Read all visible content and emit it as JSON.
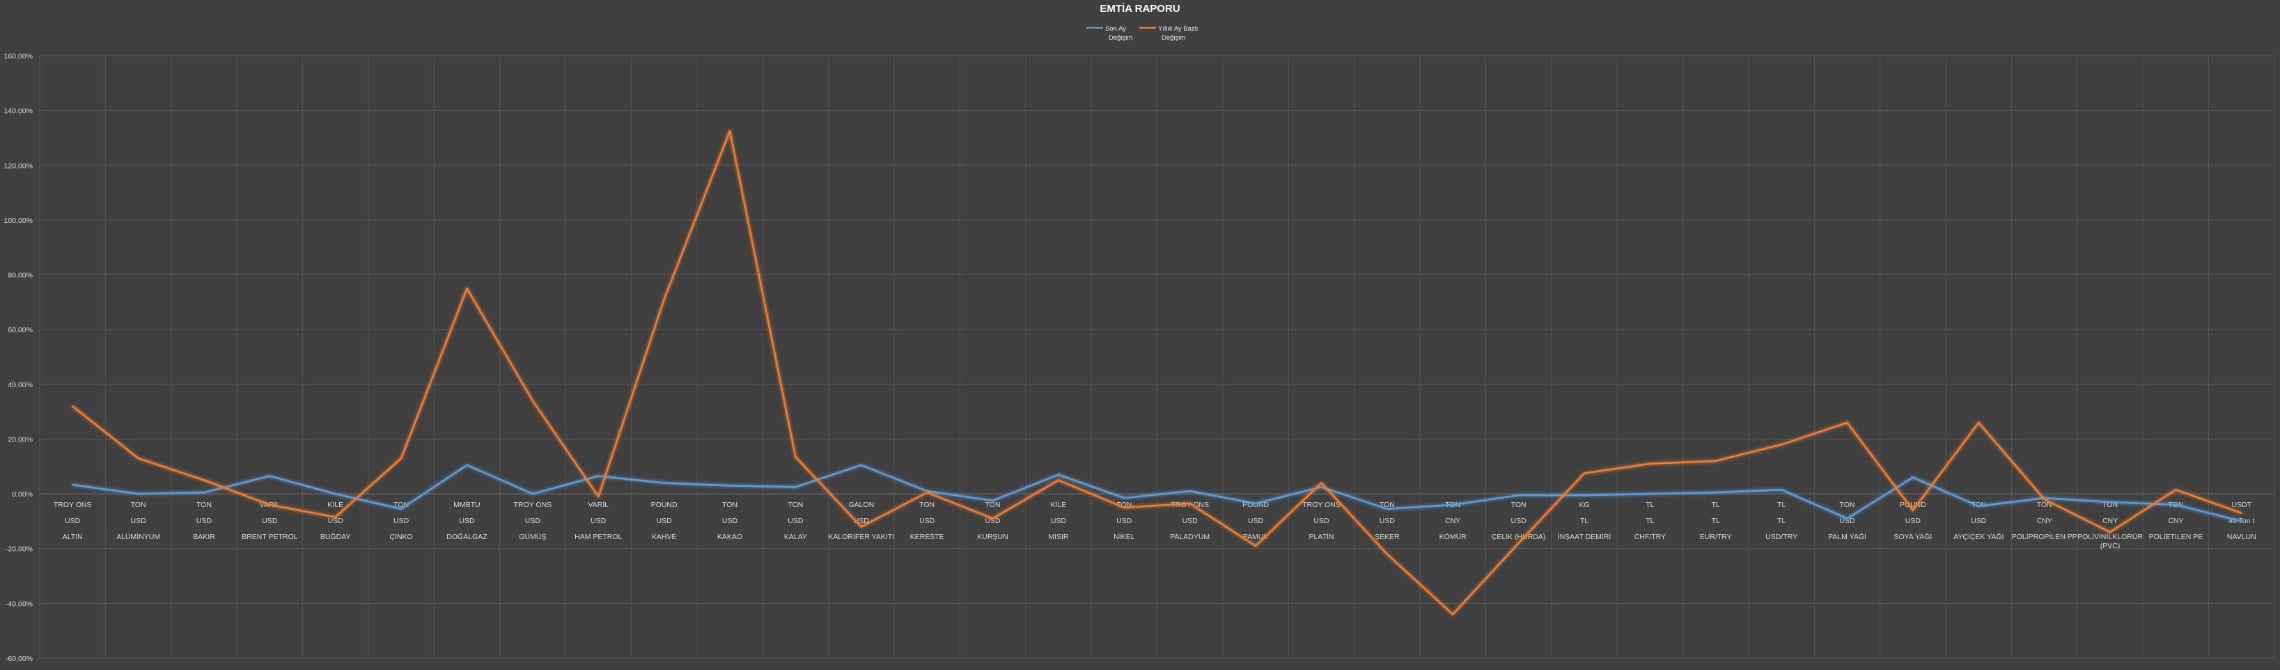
{
  "chart_data": {
    "type": "line",
    "title": "EMTİA RAPORU",
    "ylim": [
      -60,
      160
    ],
    "yticks": [
      "160,00%",
      "140,00%",
      "120,00%",
      "100,00%",
      "80,00%",
      "60,00%",
      "40,00%",
      "20,00%",
      "0,00%",
      "-20,00%",
      "-40,00%",
      "-60,00%"
    ],
    "grid": true,
    "legend_position": "top",
    "categories": [
      {
        "unit": "TROY ONS",
        "currency": "USD",
        "name": "ALTIN"
      },
      {
        "unit": "TON",
        "currency": "USD",
        "name": "ALÜMİNYUM"
      },
      {
        "unit": "TON",
        "currency": "USD",
        "name": "BAKIR"
      },
      {
        "unit": "VARİL",
        "currency": "USD",
        "name": "BRENT PETROL"
      },
      {
        "unit": "KİLE",
        "currency": "USD",
        "name": "BUĞDAY"
      },
      {
        "unit": "TON",
        "currency": "USD",
        "name": "ÇİNKO"
      },
      {
        "unit": "MMBTU",
        "currency": "USD",
        "name": "DOĞALGAZ"
      },
      {
        "unit": "TROY ONS",
        "currency": "USD",
        "name": "GÜMÜŞ"
      },
      {
        "unit": "VARİL",
        "currency": "USD",
        "name": "HAM PETROL"
      },
      {
        "unit": "POUND",
        "currency": "USD",
        "name": "KAHVE"
      },
      {
        "unit": "TON",
        "currency": "USD",
        "name": "KAKAO"
      },
      {
        "unit": "TON",
        "currency": "USD",
        "name": "KALAY"
      },
      {
        "unit": "GALON",
        "currency": "USD",
        "name": "KALORİFER YAKITI"
      },
      {
        "unit": "TON",
        "currency": "USD",
        "name": "KERESTE"
      },
      {
        "unit": "TON",
        "currency": "USD",
        "name": "KURŞUN"
      },
      {
        "unit": "KİLE",
        "currency": "USD",
        "name": "MISIR"
      },
      {
        "unit": "TON",
        "currency": "USD",
        "name": "NİKEL"
      },
      {
        "unit": "TROY ONS",
        "currency": "USD",
        "name": "PALADYUM"
      },
      {
        "unit": "POUND",
        "currency": "USD",
        "name": "PAMUK"
      },
      {
        "unit": "TROY ONS",
        "currency": "USD",
        "name": "PLATİN"
      },
      {
        "unit": "TON",
        "currency": "USD",
        "name": "ŞEKER"
      },
      {
        "unit": "TON",
        "currency": "CNY",
        "name": "KÖMÜR"
      },
      {
        "unit": "TON",
        "currency": "USD",
        "name": "ÇELİK (HURDA)"
      },
      {
        "unit": "KG",
        "currency": "TL",
        "name": "İNŞAAT DEMİRİ"
      },
      {
        "unit": "TL",
        "currency": "TL",
        "name": "CHF/TRY"
      },
      {
        "unit": "TL",
        "currency": "TL",
        "name": "EUR/TRY"
      },
      {
        "unit": "TL",
        "currency": "TL",
        "name": "USD/TRY"
      },
      {
        "unit": "TON",
        "currency": "USD",
        "name": "PALM YAĞI"
      },
      {
        "unit": "POUND",
        "currency": "USD",
        "name": "SOYA YAĞI"
      },
      {
        "unit": "TON",
        "currency": "USD",
        "name": "AYÇİÇEK YAĞI"
      },
      {
        "unit": "TON",
        "currency": "CNY",
        "name": "POLİPROPİLEN PP"
      },
      {
        "unit": "TON",
        "currency": "CNY",
        "name": "POLİVİNİLKLORÜR (PVC)"
      },
      {
        "unit": "TON",
        "currency": "CNY",
        "name": "POLİETİLEN PE"
      },
      {
        "unit": "USDT",
        "currency": "40 Ton t",
        "name": "NAVLUN"
      }
    ],
    "series": [
      {
        "name": "Son Ay Değişim",
        "color": "#5b9bd5",
        "values": [
          3.3,
          0.0,
          0.5,
          6.5,
          0.0,
          -5.5,
          10.5,
          0.0,
          6.5,
          4.0,
          3.0,
          2.5,
          10.5,
          1.0,
          -2.5,
          7.0,
          -1.5,
          1.0,
          -3.5,
          2.5,
          -5.5,
          -4.0,
          -0.5,
          -0.5,
          0.0,
          0.5,
          1.5,
          -9.0,
          6.0,
          -4.5,
          -1.5,
          -3.0,
          -4.0,
          -10.0
        ]
      },
      {
        "name": "Yıllık Ay Bazlı Değişim",
        "color": "#ed7d31",
        "values": [
          32.0,
          13.0,
          5.0,
          -4.0,
          -8.5,
          13.0,
          75.0,
          34.0,
          -1.0,
          71.0,
          132.5,
          13.5,
          -12.0,
          0.5,
          -9.0,
          5.0,
          -5.0,
          -3.5,
          -19.0,
          4.0,
          -22.0,
          -44.0,
          -18.0,
          7.5,
          11.0,
          12.0,
          18.0,
          26.0,
          -6.0,
          26.0,
          -2.0,
          -14.0,
          1.5,
          -7.0
        ]
      }
    ]
  }
}
